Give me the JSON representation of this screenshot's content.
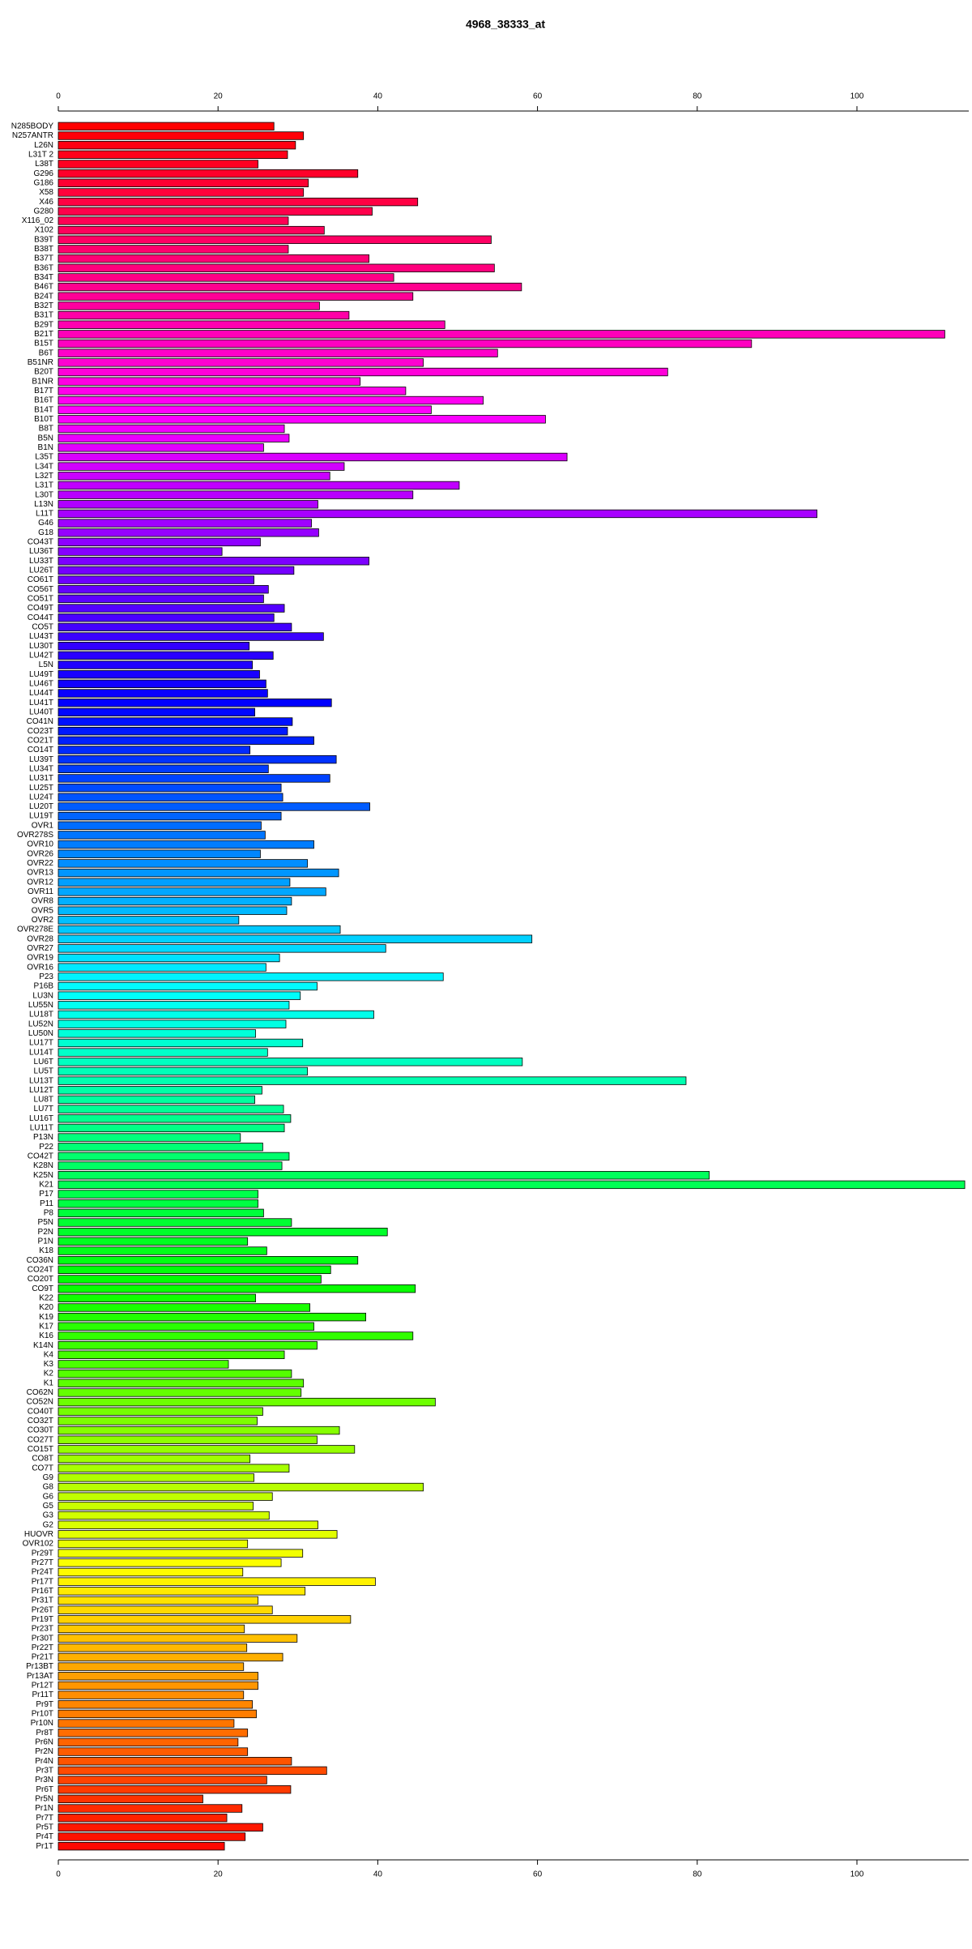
{
  "chart_data": {
    "type": "barh",
    "title": "4968_38333_at",
    "categories": [
      "N285BODY",
      "N257ANTR",
      "L26N",
      "L31T 2",
      "L38T",
      "G296",
      "G186",
      "X58",
      "X46",
      "G280",
      "X116_02",
      "X102",
      "B39T",
      "B38T",
      "B37T",
      "B36T",
      "B34T",
      "B46T",
      "B24T",
      "B32T",
      "B31T",
      "B29T",
      "B21T",
      "B15T",
      "B6T",
      "B51NR",
      "B20T",
      "B1NR",
      "B17T",
      "B16T",
      "B14T",
      "B10T",
      "B8T",
      "B5N",
      "B1N",
      "L35T",
      "L34T",
      "L32T",
      "L31T",
      "L30T",
      "L13N",
      "L11T",
      "G46",
      "G18",
      "CO43T",
      "LU36T",
      "LU33T",
      "LU26T",
      "CO61T",
      "CO56T",
      "CO51T",
      "CO49T",
      "CO44T",
      "CO5T",
      "LU43T",
      "LU30T",
      "LU42T",
      "L5N",
      "LU49T",
      "LU46T",
      "LU44T",
      "LU41T",
      "LU40T",
      "CO41N",
      "CO23T",
      "CO21T",
      "CO14T",
      "LU39T",
      "LU34T",
      "LU31T",
      "LU25T",
      "LU24T",
      "LU20T",
      "LU19T",
      "OVR1",
      "OVR278S",
      "OVR10",
      "OVR26",
      "OVR22",
      "OVR13",
      "OVR12",
      "OVR11",
      "OVR8",
      "OVR5",
      "OVR2",
      "OVR278E",
      "OVR28",
      "OVR27",
      "OVR19",
      "OVR16",
      "P23",
      "P16B",
      "LU3N",
      "LU55N",
      "LU18T",
      "LU52N",
      "LU50N",
      "LU17T",
      "LU14T",
      "LU6T",
      "LU5T",
      "LU13T",
      "LU12T",
      "LU8T",
      "LU7T",
      "LU16T",
      "LU11T",
      "P13N",
      "P22",
      "CO42T",
      "K28N",
      "K25N",
      "K21",
      "P17",
      "P11",
      "P8",
      "P5N",
      "P2N",
      "P1N",
      "K18",
      "CO36N",
      "CO24T",
      "CO20T",
      "CO9T",
      "K22",
      "K20",
      "K19",
      "K17",
      "K16",
      "K14N",
      "K4",
      "K3",
      "K2",
      "K1",
      "CO62N",
      "CO52N",
      "CO40T",
      "CO32T",
      "CO30T",
      "CO27T",
      "CO15T",
      "CO8T",
      "CO7T",
      "G9",
      "G8",
      "G6",
      "G5",
      "G3",
      "G2",
      "HUOVR",
      "OVR102",
      "Pr29T",
      "Pr27T",
      "Pr24T",
      "Pr17T",
      "Pr16T",
      "Pr31T",
      "Pr26T",
      "Pr19T",
      "Pr23T",
      "Pr30T",
      "Pr22T",
      "Pr21T",
      "Pr13BT",
      "Pr13AT",
      "Pr12T",
      "Pr11T",
      "Pr9T",
      "Pr10T",
      "Pr10N",
      "Pr8T",
      "Pr6N",
      "Pr2N",
      "Pr4N",
      "Pr3T",
      "Pr3N",
      "Pr6T",
      "Pr5N",
      "Pr1N",
      "Pr7T",
      "Pr5T",
      "Pr4T",
      "Pr1T"
    ],
    "values": [
      27,
      30.7,
      29.7,
      28.7,
      25,
      37.5,
      31.3,
      30.7,
      45,
      39.3,
      28.8,
      33.3,
      54.2,
      28.8,
      38.9,
      54.6,
      42,
      58,
      44.4,
      32.7,
      36.4,
      48.4,
      111,
      86.8,
      55,
      45.7,
      76.3,
      37.8,
      43.5,
      53.2,
      46.7,
      61,
      28.3,
      28.9,
      25.7,
      63.7,
      35.8,
      34,
      50.2,
      44.4,
      32.5,
      95,
      31.7,
      32.6,
      25.3,
      20.5,
      38.9,
      29.5,
      24.5,
      26.3,
      25.7,
      28.3,
      27,
      29.2,
      33.2,
      23.9,
      26.9,
      24.3,
      25.2,
      26,
      26.2,
      34.2,
      24.6,
      29.3,
      28.7,
      32,
      24,
      34.8,
      26.3,
      34,
      27.9,
      28.1,
      39,
      27.9,
      25.4,
      25.9,
      32,
      25.3,
      31.2,
      35.1,
      29,
      33.5,
      29.2,
      28.6,
      22.6,
      35.3,
      59.3,
      41,
      27.7,
      26,
      48.2,
      32.4,
      30.3,
      28.9,
      39.5,
      28.5,
      24.7,
      30.6,
      26.2,
      58.1,
      31.2,
      78.6,
      25.5,
      24.6,
      28.2,
      29.1,
      28.3,
      22.8,
      25.6,
      28.9,
      28,
      81.5,
      113.5,
      25,
      25,
      25.7,
      29.2,
      41.2,
      23.7,
      26.1,
      37.5,
      34.1,
      32.9,
      44.7,
      24.7,
      31.5,
      38.5,
      32,
      44.4,
      32.4,
      28.3,
      21.3,
      29.2,
      30.7,
      30.4,
      47.2,
      25.6,
      24.9,
      35.2,
      32.4,
      37.1,
      24,
      28.9,
      24.5,
      45.7,
      26.8,
      24.4,
      26.4,
      32.5,
      34.9,
      23.7,
      30.6,
      27.9,
      23.1,
      39.7,
      30.9,
      25,
      26.8,
      36.6,
      23.3,
      29.9,
      23.6,
      28.1,
      23.2,
      25,
      25,
      23.2,
      24.3,
      24.8,
      22,
      23.7,
      22.5,
      23.7,
      29.2,
      33.6,
      26.1,
      29.1,
      18.1,
      23,
      21.1,
      25.6,
      23.4,
      20.8
    ],
    "colormap": "rainbow",
    "xlim": [
      0,
      114
    ],
    "xticks": [
      0,
      20,
      40,
      60,
      80,
      100
    ]
  }
}
